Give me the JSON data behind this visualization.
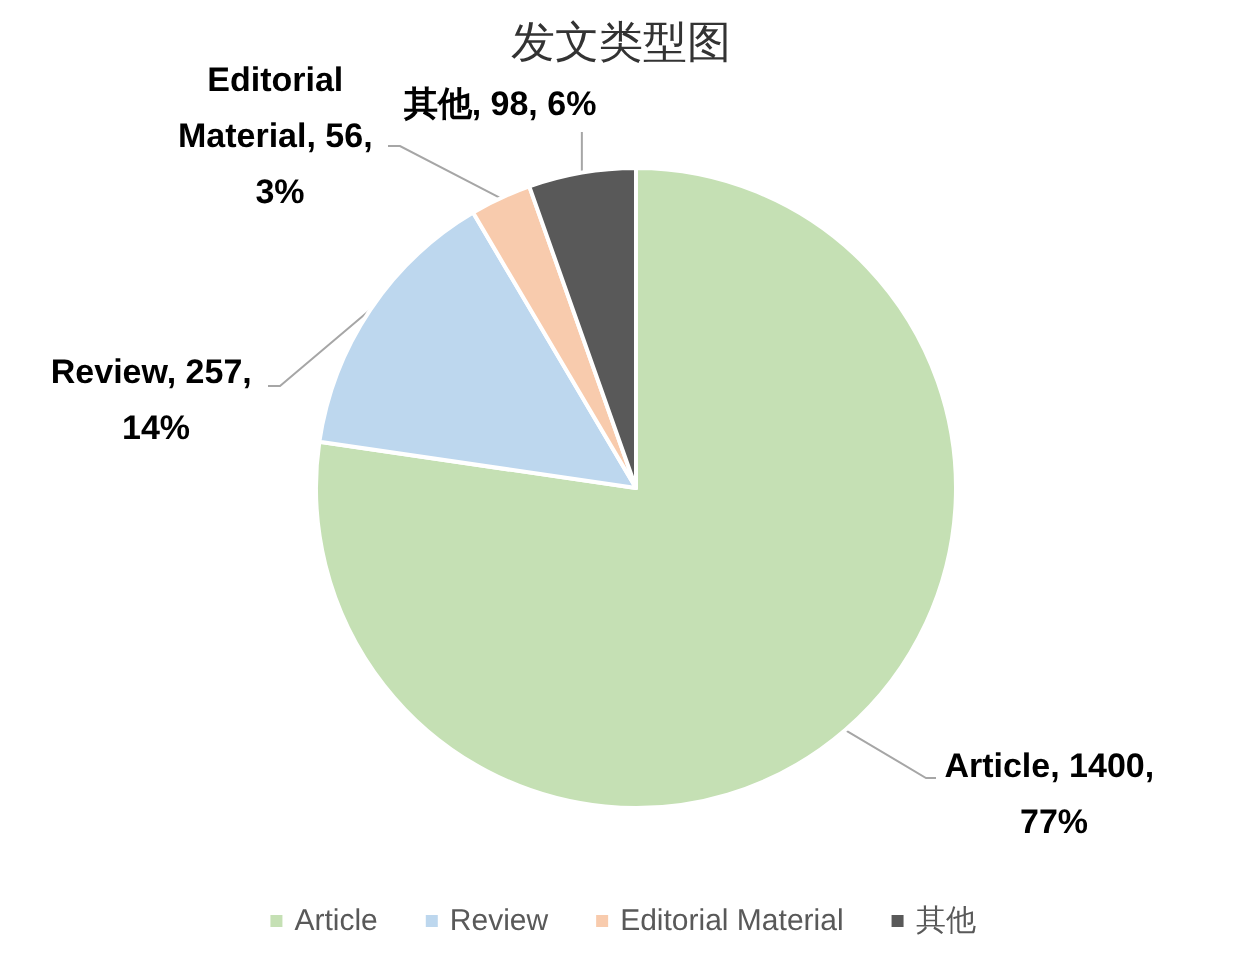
{
  "chart_data": {
    "type": "pie",
    "title": "发文类型图",
    "categories": [
      "Article",
      "Review",
      "Editorial Material",
      "其他"
    ],
    "values": [
      1400,
      257,
      56,
      98
    ],
    "colors": [
      "#c5e0b4",
      "#bdd7ee",
      "#f8cbad",
      "#595959"
    ],
    "value_labels": [
      "Article, 1400, 77%",
      "Review, 257, 14%",
      "Editorial Material, 56, 3%",
      "其他, 98, 6%"
    ],
    "legend": "bottom"
  }
}
